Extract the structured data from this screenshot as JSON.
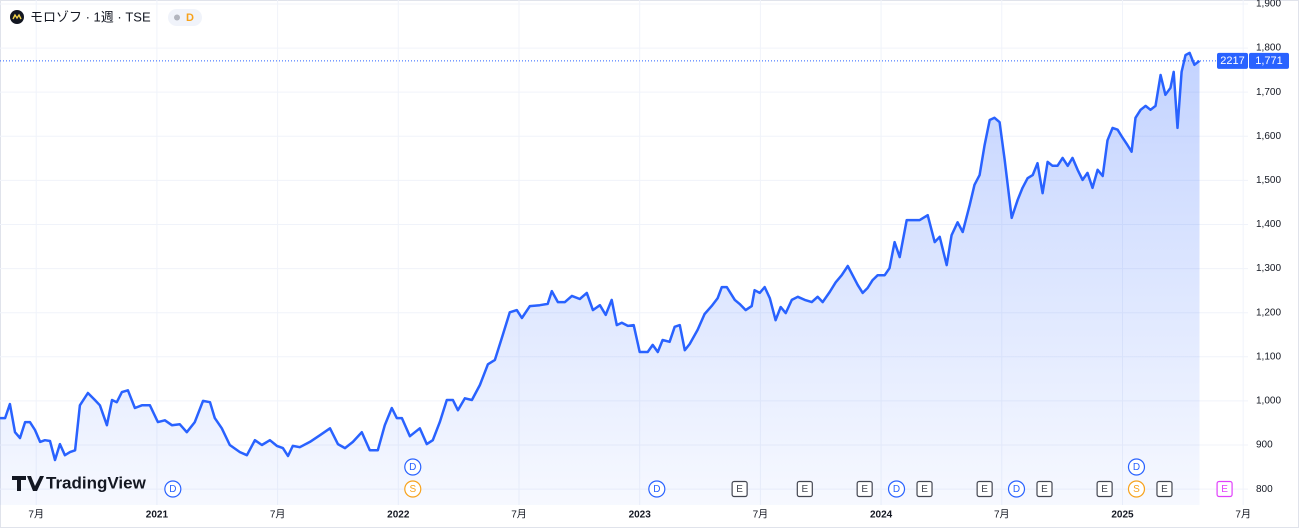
{
  "chart_data": {
    "type": "area-line",
    "symbol": "モロゾフ · 1週 · TSE",
    "badge": "D",
    "symbol_code": "2217",
    "watermark": "TradingView",
    "last_label": {
      "value": 1771,
      "label": "1,771"
    },
    "color": "#2962ff",
    "x": [
      2020.35,
      2020.371,
      2020.391,
      2020.412,
      2020.433,
      2020.454,
      2020.474,
      2020.495,
      2020.516,
      2020.536,
      2020.557,
      2020.578,
      2020.598,
      2020.619,
      2020.64,
      2020.661,
      2020.681,
      2020.714,
      2020.743,
      2020.764,
      2020.793,
      2020.814,
      2020.834,
      2020.855,
      2020.88,
      2020.909,
      2020.938,
      2020.971,
      2021.004,
      2021.033,
      2021.062,
      2021.095,
      2021.124,
      2021.157,
      2021.191,
      2021.22,
      2021.24,
      2021.269,
      2021.302,
      2021.344,
      2021.373,
      2021.406,
      2021.435,
      2021.468,
      2021.497,
      2021.522,
      2021.543,
      2021.563,
      2021.592,
      2021.634,
      2021.675,
      2021.717,
      2021.75,
      2021.779,
      2021.812,
      2021.849,
      2021.882,
      2021.915,
      2021.944,
      2021.973,
      2021.994,
      2022.015,
      2022.048,
      2022.089,
      2022.118,
      2022.143,
      2022.172,
      2022.201,
      2022.226,
      2022.247,
      2022.276,
      2022.305,
      2022.338,
      2022.371,
      2022.4,
      2022.429,
      2022.462,
      2022.491,
      2022.512,
      2022.545,
      2022.586,
      2022.619,
      2022.636,
      2022.661,
      2022.69,
      2022.719,
      2022.752,
      2022.781,
      2022.806,
      2022.835,
      2022.859,
      2022.884,
      2022.905,
      2022.926,
      2022.951,
      2022.975,
      2023.0,
      2023.033,
      2023.054,
      2023.075,
      2023.095,
      2023.124,
      2023.145,
      2023.166,
      2023.187,
      2023.207,
      2023.24,
      2023.269,
      2023.298,
      2023.323,
      2023.34,
      2023.361,
      2023.394,
      2023.414,
      2023.439,
      2023.464,
      2023.476,
      2023.497,
      2023.518,
      2023.539,
      2023.563,
      2023.584,
      2023.605,
      2023.63,
      2023.655,
      2023.684,
      2023.713,
      2023.737,
      2023.758,
      2023.787,
      2023.812,
      2023.837,
      2023.862,
      2023.882,
      2023.903,
      2023.924,
      2023.944,
      2023.965,
      2023.986,
      2024.015,
      2024.035,
      2024.056,
      2024.077,
      2024.106,
      2024.131,
      2024.16,
      2024.193,
      2024.222,
      2024.243,
      2024.272,
      2024.292,
      2024.317,
      2024.338,
      2024.367,
      2024.387,
      2024.408,
      2024.429,
      2024.45,
      2024.47,
      2024.491,
      2024.512,
      2024.541,
      2024.566,
      2024.586,
      2024.607,
      2024.628,
      2024.648,
      2024.669,
      2024.69,
      2024.71,
      2024.731,
      2024.752,
      2024.773,
      2024.793,
      2024.814,
      2024.835,
      2024.855,
      2024.876,
      2024.897,
      2024.918,
      2024.938,
      2024.959,
      2024.98,
      2025.0,
      2025.021,
      2025.038,
      2025.054,
      2025.075,
      2025.096,
      2025.116,
      2025.137,
      2025.158,
      2025.178,
      2025.199,
      2025.212,
      2025.228,
      2025.245,
      2025.261,
      2025.278,
      2025.298,
      2025.319
    ],
    "values": [
      961,
      961,
      993,
      929,
      916,
      952,
      952,
      934,
      907,
      911,
      909,
      866,
      902,
      877,
      884,
      888,
      990,
      1018,
      1002,
      990,
      945,
      1002,
      997,
      1020,
      1024,
      984,
      990,
      990,
      952,
      956,
      945,
      947,
      929,
      952,
      1000,
      997,
      961,
      938,
      900,
      884,
      877,
      911,
      900,
      911,
      898,
      893,
      875,
      898,
      895,
      907,
      922,
      938,
      902,
      893,
      907,
      929,
      888,
      888,
      945,
      984,
      961,
      961,
      920,
      938,
      902,
      911,
      952,
      1002,
      1002,
      979,
      1006,
      1002,
      1036,
      1083,
      1093,
      1143,
      1201,
      1206,
      1188,
      1215,
      1217,
      1220,
      1249,
      1224,
      1224,
      1238,
      1231,
      1245,
      1206,
      1217,
      1195,
      1229,
      1172,
      1177,
      1170,
      1172,
      1111,
      1111,
      1127,
      1111,
      1138,
      1134,
      1168,
      1172,
      1115,
      1129,
      1161,
      1197,
      1215,
      1233,
      1258,
      1258,
      1229,
      1220,
      1206,
      1215,
      1251,
      1245,
      1258,
      1233,
      1183,
      1213,
      1199,
      1229,
      1236,
      1229,
      1224,
      1236,
      1224,
      1247,
      1269,
      1285,
      1306,
      1285,
      1263,
      1245,
      1256,
      1274,
      1285,
      1285,
      1301,
      1360,
      1326,
      1410,
      1410,
      1410,
      1421,
      1360,
      1372,
      1308,
      1376,
      1405,
      1383,
      1444,
      1490,
      1512,
      1580,
      1637,
      1642,
      1632,
      1546,
      1415,
      1456,
      1483,
      1505,
      1512,
      1539,
      1471,
      1542,
      1533,
      1533,
      1551,
      1533,
      1551,
      1524,
      1501,
      1517,
      1483,
      1524,
      1510,
      1591,
      1619,
      1615,
      1597,
      1580,
      1565,
      1642,
      1660,
      1669,
      1660,
      1669,
      1739,
      1694,
      1710,
      1746,
      1619,
      1746,
      1784,
      1789,
      1762,
      1771
    ],
    "xlim": [
      2020.35,
      2025.52
    ],
    "ylim": [
      764,
      1909
    ],
    "xticks": [
      {
        "value": 2020.5,
        "label": "7月"
      },
      2021,
      {
        "value": 2021.5,
        "label": "7月"
      },
      2022,
      {
        "value": 2022.5,
        "label": "7月"
      },
      2023,
      {
        "value": 2023.5,
        "label": "7月"
      },
      2024,
      {
        "value": 2024.5,
        "label": "7月"
      },
      2025,
      {
        "value": 2025.5,
        "label": "7月"
      }
    ],
    "yticks": [
      800,
      900,
      {
        "value": 1000,
        "label": "1,000"
      },
      {
        "value": 1100,
        "label": "1,100"
      },
      {
        "value": 1200,
        "label": "1,200"
      },
      {
        "value": 1300,
        "label": "1,300"
      },
      {
        "value": 1400,
        "label": "1,400"
      },
      {
        "value": 1500,
        "label": "1,500"
      },
      {
        "value": 1600,
        "label": "1,600"
      },
      {
        "value": 1700,
        "label": "1,700"
      },
      {
        "value": 1800,
        "label": "1,800"
      },
      {
        "value": 1900,
        "label": "1,900"
      }
    ],
    "grid": true,
    "events": [
      {
        "x": 2021.066,
        "label": "D",
        "color": "#2962ff"
      },
      {
        "x": 2022.06,
        "label": "S",
        "color": "#f7a21b"
      },
      {
        "x": 2022.06,
        "label": "D",
        "color": "#2962ff"
      },
      {
        "x": 2023.071,
        "label": "D",
        "color": "#2962ff"
      },
      {
        "x": 2023.414,
        "label": "E",
        "color": "#434651"
      },
      {
        "x": 2023.684,
        "label": "E",
        "color": "#434651"
      },
      {
        "x": 2023.932,
        "label": "E",
        "color": "#434651"
      },
      {
        "x": 2024.064,
        "label": "D",
        "color": "#2962ff"
      },
      {
        "x": 2024.18,
        "label": "E",
        "color": "#434651"
      },
      {
        "x": 2024.429,
        "label": "E",
        "color": "#434651"
      },
      {
        "x": 2024.561,
        "label": "D",
        "color": "#2962ff"
      },
      {
        "x": 2024.677,
        "label": "E",
        "color": "#434651"
      },
      {
        "x": 2024.926,
        "label": "E",
        "color": "#434651"
      },
      {
        "x": 2025.058,
        "label": "S",
        "color": "#f7a21b"
      },
      {
        "x": 2025.058,
        "label": "D",
        "color": "#2962ff"
      },
      {
        "x": 2025.174,
        "label": "E",
        "color": "#434651"
      },
      {
        "x": 2025.423,
        "label": "E",
        "color": "#e040fb"
      }
    ]
  }
}
